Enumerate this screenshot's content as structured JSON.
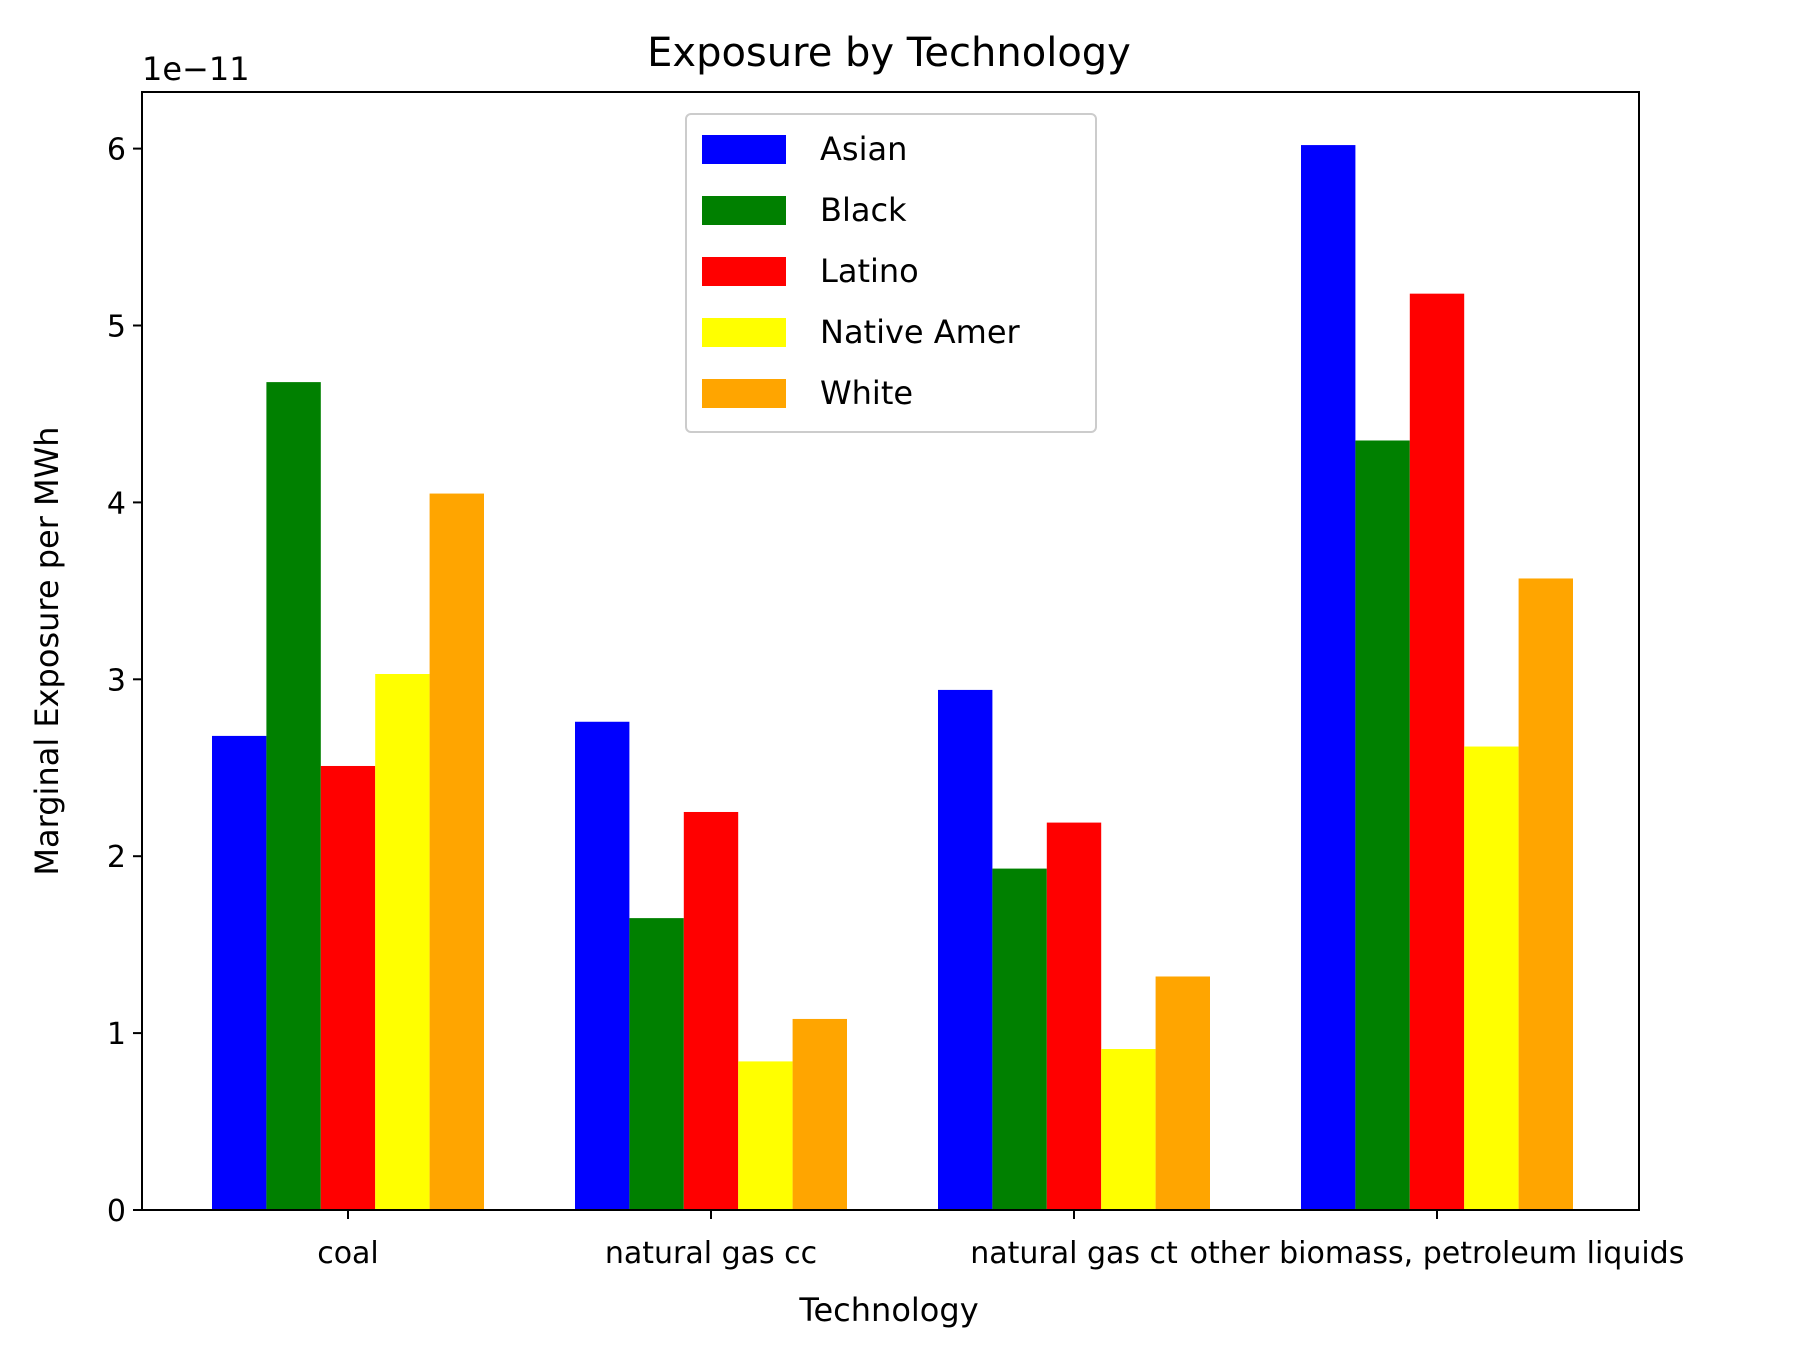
{
  "chart_data": {
    "type": "bar",
    "title": "Exposure by Technology",
    "xlabel": "Technology",
    "ylabel": "Marginal Exposure per MWh",
    "y_multiplier_label": "1e−11",
    "y_scale_exponent": -11,
    "categories": [
      "coal",
      "natural gas cc",
      "natural gas ct",
      "other biomass, petroleum liquids"
    ],
    "series": [
      {
        "name": "Asian",
        "color": "#0000ff",
        "values": [
          2.68,
          2.76,
          2.94,
          6.02
        ]
      },
      {
        "name": "Black",
        "color": "#008000",
        "values": [
          4.68,
          1.65,
          1.93,
          4.35
        ]
      },
      {
        "name": "Latino",
        "color": "#ff0000",
        "values": [
          2.51,
          2.25,
          2.19,
          5.18
        ]
      },
      {
        "name": "Native Amer",
        "color": "#ffff00",
        "values": [
          3.03,
          0.84,
          0.91,
          2.62
        ]
      },
      {
        "name": "White",
        "color": "#ffa500",
        "values": [
          4.05,
          1.08,
          1.32,
          3.57
        ]
      }
    ],
    "ylim": [
      0,
      6.32
    ],
    "yticks": [
      0,
      1,
      2,
      3,
      4,
      5,
      6
    ],
    "grid": false,
    "legend_position": "upper-center"
  }
}
